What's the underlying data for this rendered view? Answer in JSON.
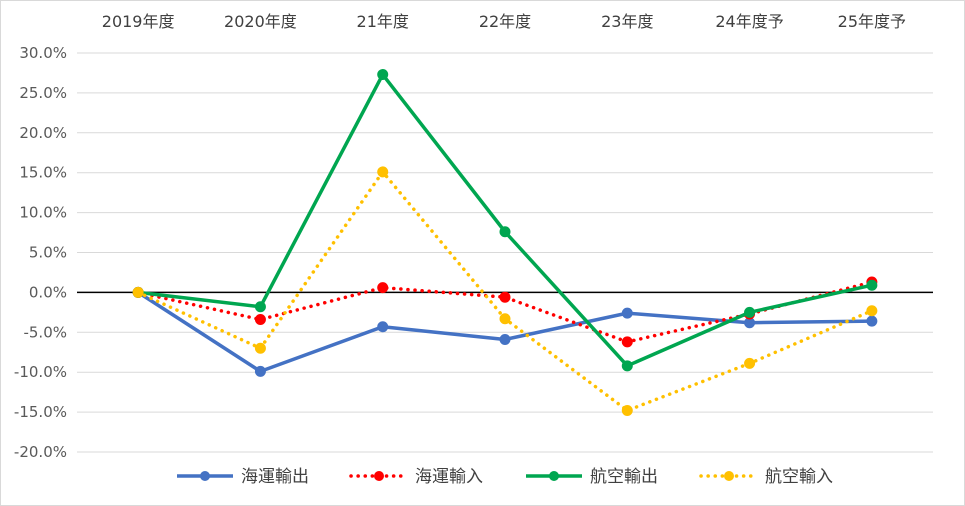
{
  "chart_data": {
    "type": "line",
    "title": "",
    "xlabel": "",
    "ylabel": "",
    "categories": [
      "2019年度",
      "2020年度",
      "21年度",
      "22年度",
      "23年度",
      "24年度予",
      "25年度予"
    ],
    "ylim": [
      -20,
      30
    ],
    "y_step": 5,
    "y_tick_labels": [
      "30.0%",
      "25.0%",
      "20.0%",
      "15.0%",
      "10.0%",
      "5.0%",
      "0.0%",
      "-5.0%",
      "-10.0%",
      "-15.0%",
      "-20.0%"
    ],
    "grid": true,
    "legend_position": "bottom",
    "series": [
      {
        "name": "海運輸出",
        "color": "#4472C4",
        "style": "solid",
        "values": [
          0,
          -9.9,
          -4.3,
          -5.9,
          -2.6,
          -3.8,
          -3.6
        ]
      },
      {
        "name": "海運輸入",
        "color": "#FF0000",
        "style": "dotted",
        "values": [
          0,
          -3.4,
          0.6,
          -0.6,
          -6.2,
          -2.7,
          1.3
        ]
      },
      {
        "name": "航空輸出",
        "color": "#00A650",
        "style": "solid",
        "values": [
          0,
          -1.8,
          27.3,
          7.6,
          -9.2,
          -2.5,
          0.9
        ]
      },
      {
        "name": "航空輸入",
        "color": "#FFC000",
        "style": "dotted",
        "values": [
          0,
          -7.0,
          15.1,
          -3.3,
          -14.8,
          -8.9,
          -2.3
        ]
      }
    ]
  }
}
